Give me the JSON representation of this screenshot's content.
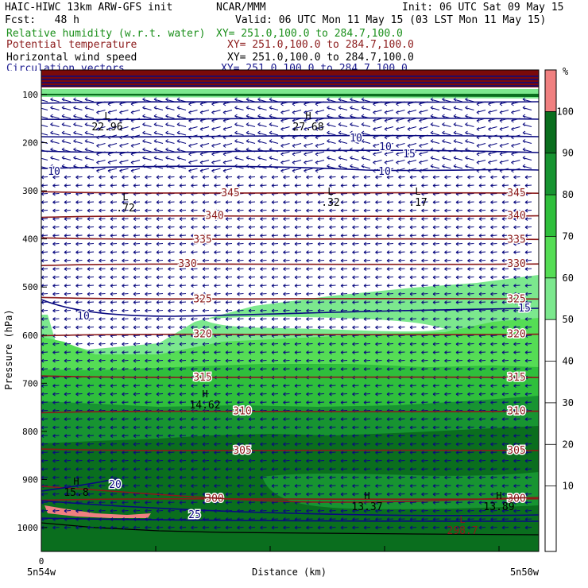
{
  "header": {
    "model": "HAIC-HIWC 13km ARW-GFS init",
    "center": "NCAR/MMM",
    "init": "Init: 06 UTC Sat 09 May 15",
    "fcst": "Fcst:   48 h",
    "valid": "Valid: 06 UTC Mon 11 May 15 (03 LST Mon 11 May 15)",
    "fields": [
      {
        "name": "Relative humidity (w.r.t. water)",
        "xy": "XY= 251.0,100.0 to 284.7,100.0",
        "color": "#1a8f1a"
      },
      {
        "name": "Potential temperature",
        "xy": "XY= 251.0,100.0 to 284.7,100.0",
        "color": "#8b1a1a"
      },
      {
        "name": "Horizontal wind speed",
        "xy": "XY= 251.0,100.0 to 284.7,100.0",
        "color": "#000000"
      },
      {
        "name": "Circulation vectors",
        "xy": "XY= 251.0,100.0 to 284.7,100.0",
        "color": "#1a1a8f"
      }
    ]
  },
  "chart_data": {
    "type": "heatmap",
    "ylabel": "Pressure (hPa)",
    "xlabel": "Distance (km)",
    "x_start_label": "5n54w",
    "x_end_label": "5n50w",
    "x_zero_label": "0",
    "y_ticks": [
      100,
      200,
      300,
      400,
      500,
      600,
      700,
      800,
      900,
      1000
    ],
    "colorbar": {
      "unit": "%",
      "ticks": [
        10,
        20,
        30,
        40,
        50,
        60,
        70,
        80,
        90,
        100
      ],
      "bins": [
        {
          "from": 100,
          "to": 110,
          "color": "#f08080"
        },
        {
          "from": 90,
          "to": 100,
          "color": "#0a6e1e"
        },
        {
          "from": 80,
          "to": 90,
          "color": "#179431"
        },
        {
          "from": 70,
          "to": 80,
          "color": "#2fbf3c"
        },
        {
          "from": 60,
          "to": 70,
          "color": "#55dd55"
        },
        {
          "from": 50,
          "to": 60,
          "color": "#7ce88e"
        },
        {
          "from": 40,
          "to": 50,
          "color": "#ffffff"
        }
      ]
    },
    "rh_colors": {
      "c100": "#f08080",
      "c90": "#0a6e1e",
      "c80": "#179431",
      "c70": "#2fbf3c",
      "c60": "#55dd55",
      "c50": "#7ce88e"
    },
    "theta_color": "#8b1a1a",
    "wind_color": "#0a0a80",
    "theta_lines": [
      {
        "label": "345",
        "p": 305
      },
      {
        "label": "340",
        "p": 352
      },
      {
        "label": "335",
        "p": 401
      },
      {
        "label": "330",
        "p": 452
      },
      {
        "label": "325",
        "p": 525
      },
      {
        "label": "320",
        "p": 598
      },
      {
        "label": "315",
        "p": 688
      },
      {
        "label": "310",
        "p": 758
      },
      {
        "label": "305",
        "p": 840
      },
      {
        "label": "300",
        "p": 940
      }
    ],
    "wind_labels": [
      "10",
      "10",
      "10",
      "15",
      "20",
      "25",
      "15",
      "10",
      "10"
    ],
    "highs_lows": [
      {
        "type": "L",
        "value": ".72"
      },
      {
        "type": "L",
        "value": ".32"
      },
      {
        "type": "L",
        "value": ".17"
      },
      {
        "type": "H",
        "value": "27.68"
      },
      {
        "type": "L",
        "value": "22.96"
      },
      {
        "type": "H",
        "value": "14.62"
      },
      {
        "type": "H",
        "value": "15.8"
      },
      {
        "type": "H",
        "value": "13.37"
      },
      {
        "type": "H",
        "value": "13.89"
      },
      {
        "type": "L",
        "value": "298.7"
      }
    ]
  }
}
